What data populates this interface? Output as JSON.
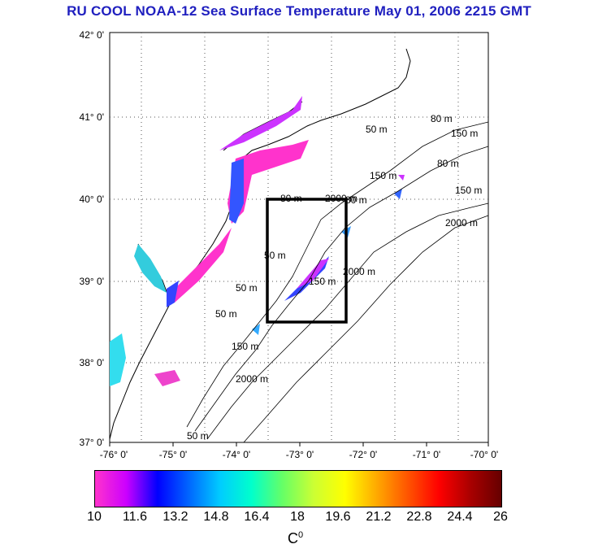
{
  "title": "RU COOL  NOAA-12 Sea Surface Temperature May 01, 2006 2215 GMT",
  "map": {
    "lon_range": [
      -76,
      -70
    ],
    "lat_range": [
      37,
      42
    ],
    "y_ticks": [
      "42° 0'",
      "41° 0'",
      "40° 0'",
      "39° 0'",
      "38° 0'",
      "37° 0'"
    ],
    "x_ticks": [
      "-76° 0'",
      "-75° 0'",
      "-74° 0'",
      "-73° 0'",
      "-72° 0'",
      "-71° 0'",
      "-70° 0'"
    ],
    "contour_labels": [
      "50 m",
      "80 m",
      "150 m",
      "2000 m",
      "50 m",
      "80 m",
      "150 m",
      "2000 m",
      "50 m",
      "80 m",
      "150 m",
      "2000 m",
      "50 m",
      "80 m",
      "150 m",
      "2000 m",
      "50 m",
      "150 m"
    ],
    "box": {
      "lon": [
        -73.5,
        -72.5
      ],
      "lat": [
        38.5,
        40.0
      ]
    }
  },
  "colorbar": {
    "ticks": [
      "10",
      "11.6",
      "13.2",
      "14.8",
      "16.4",
      "18",
      "19.6",
      "21.2",
      "22.8",
      "24.4",
      "26"
    ],
    "range": [
      10,
      26
    ],
    "unit_base": "C",
    "unit_sup": "0",
    "colors": [
      "#ff33cc",
      "#cc00ff",
      "#0000ff",
      "#0066ff",
      "#00ccff",
      "#00ffcc",
      "#66ff66",
      "#ccff33",
      "#ffff00",
      "#ffaa00",
      "#ff5500",
      "#ff0000",
      "#aa0000",
      "#660000"
    ]
  }
}
